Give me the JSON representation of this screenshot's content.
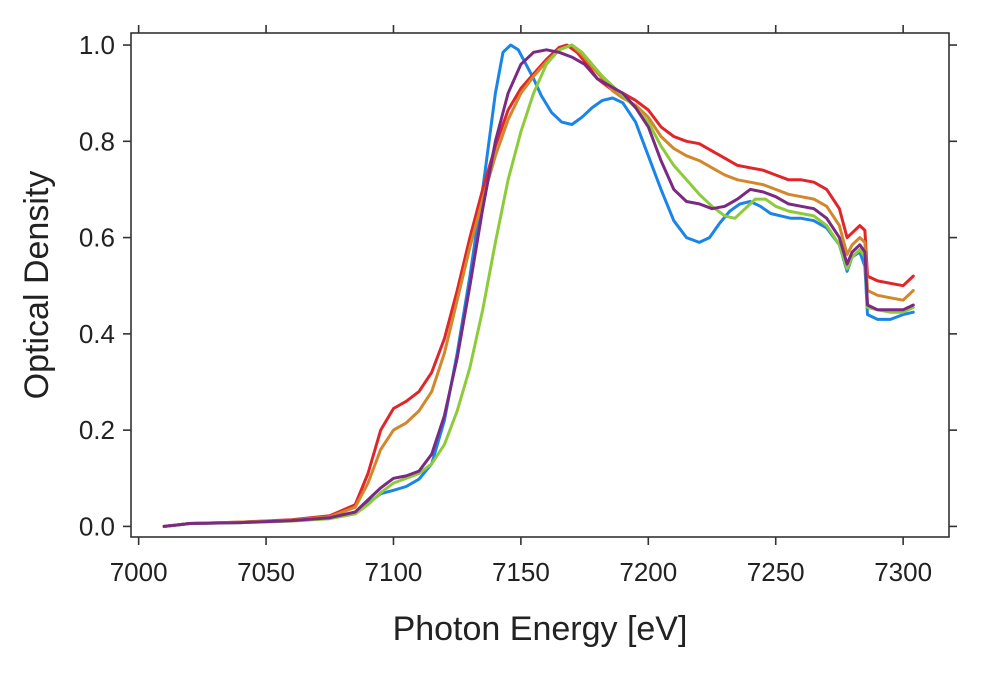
{
  "chart_data": {
    "type": "line",
    "title": "",
    "xlabel": "Photon Energy [eV]",
    "ylabel": "Optical Density",
    "xlim": [
      6997,
      7318
    ],
    "ylim": [
      -0.022,
      1.025
    ],
    "xticks": [
      7000,
      7050,
      7100,
      7150,
      7200,
      7250,
      7300
    ],
    "yticks": [
      0.0,
      0.2,
      0.4,
      0.6,
      0.8,
      1.0
    ],
    "xtick_labels": [
      "7000",
      "7050",
      "7100",
      "7150",
      "7200",
      "7250",
      "7300"
    ],
    "ytick_labels": [
      "0.0",
      "0.2",
      "0.4",
      "0.6",
      "0.8",
      "1.0"
    ],
    "grid": false,
    "legend": "none",
    "series": [
      {
        "name": "blue",
        "color": "#1a85e8",
        "points": [
          [
            7010,
            0.0
          ],
          [
            7015,
            0.003
          ],
          [
            7020,
            0.006
          ],
          [
            7040,
            0.008
          ],
          [
            7060,
            0.012
          ],
          [
            7075,
            0.018
          ],
          [
            7085,
            0.028
          ],
          [
            7090,
            0.048
          ],
          [
            7095,
            0.068
          ],
          [
            7100,
            0.075
          ],
          [
            7105,
            0.083
          ],
          [
            7110,
            0.098
          ],
          [
            7115,
            0.13
          ],
          [
            7120,
            0.22
          ],
          [
            7125,
            0.36
          ],
          [
            7130,
            0.52
          ],
          [
            7135,
            0.7
          ],
          [
            7140,
            0.9
          ],
          [
            7143,
            0.985
          ],
          [
            7146,
            1.0
          ],
          [
            7149,
            0.99
          ],
          [
            7152,
            0.96
          ],
          [
            7155,
            0.93
          ],
          [
            7158,
            0.895
          ],
          [
            7162,
            0.86
          ],
          [
            7166,
            0.84
          ],
          [
            7170,
            0.835
          ],
          [
            7174,
            0.85
          ],
          [
            7178,
            0.87
          ],
          [
            7182,
            0.885
          ],
          [
            7186,
            0.89
          ],
          [
            7190,
            0.88
          ],
          [
            7195,
            0.84
          ],
          [
            7200,
            0.77
          ],
          [
            7205,
            0.7
          ],
          [
            7210,
            0.635
          ],
          [
            7215,
            0.6
          ],
          [
            7220,
            0.59
          ],
          [
            7224,
            0.6
          ],
          [
            7228,
            0.63
          ],
          [
            7232,
            0.655
          ],
          [
            7236,
            0.67
          ],
          [
            7240,
            0.675
          ],
          [
            7244,
            0.665
          ],
          [
            7248,
            0.65
          ],
          [
            7252,
            0.645
          ],
          [
            7256,
            0.64
          ],
          [
            7260,
            0.64
          ],
          [
            7265,
            0.635
          ],
          [
            7270,
            0.62
          ],
          [
            7275,
            0.585
          ],
          [
            7278,
            0.53
          ],
          [
            7280,
            0.56
          ],
          [
            7283,
            0.57
          ],
          [
            7285,
            0.54
          ],
          [
            7286,
            0.44
          ],
          [
            7290,
            0.43
          ],
          [
            7295,
            0.43
          ],
          [
            7300,
            0.44
          ],
          [
            7304,
            0.445
          ]
        ]
      },
      {
        "name": "red",
        "color": "#e0262b",
        "points": [
          [
            7010,
            0.0
          ],
          [
            7015,
            0.003
          ],
          [
            7020,
            0.006
          ],
          [
            7040,
            0.009
          ],
          [
            7060,
            0.014
          ],
          [
            7075,
            0.022
          ],
          [
            7085,
            0.045
          ],
          [
            7090,
            0.11
          ],
          [
            7095,
            0.2
          ],
          [
            7100,
            0.245
          ],
          [
            7105,
            0.26
          ],
          [
            7110,
            0.28
          ],
          [
            7115,
            0.32
          ],
          [
            7120,
            0.39
          ],
          [
            7125,
            0.49
          ],
          [
            7130,
            0.6
          ],
          [
            7135,
            0.7
          ],
          [
            7140,
            0.79
          ],
          [
            7145,
            0.865
          ],
          [
            7150,
            0.91
          ],
          [
            7155,
            0.94
          ],
          [
            7160,
            0.97
          ],
          [
            7165,
            0.995
          ],
          [
            7168,
            1.0
          ],
          [
            7172,
            0.985
          ],
          [
            7176,
            0.96
          ],
          [
            7180,
            0.93
          ],
          [
            7185,
            0.91
          ],
          [
            7190,
            0.9
          ],
          [
            7195,
            0.885
          ],
          [
            7200,
            0.865
          ],
          [
            7205,
            0.83
          ],
          [
            7210,
            0.81
          ],
          [
            7215,
            0.8
          ],
          [
            7220,
            0.795
          ],
          [
            7225,
            0.78
          ],
          [
            7230,
            0.765
          ],
          [
            7235,
            0.75
          ],
          [
            7240,
            0.745
          ],
          [
            7245,
            0.74
          ],
          [
            7250,
            0.73
          ],
          [
            7255,
            0.72
          ],
          [
            7260,
            0.72
          ],
          [
            7265,
            0.715
          ],
          [
            7270,
            0.7
          ],
          [
            7275,
            0.66
          ],
          [
            7278,
            0.6
          ],
          [
            7280,
            0.61
          ],
          [
            7283,
            0.625
          ],
          [
            7285,
            0.615
          ],
          [
            7286,
            0.52
          ],
          [
            7290,
            0.51
          ],
          [
            7295,
            0.505
          ],
          [
            7300,
            0.5
          ],
          [
            7304,
            0.52
          ]
        ]
      },
      {
        "name": "orange",
        "color": "#d4862a",
        "points": [
          [
            7010,
            0.0
          ],
          [
            7015,
            0.003
          ],
          [
            7020,
            0.006
          ],
          [
            7040,
            0.009
          ],
          [
            7060,
            0.013
          ],
          [
            7075,
            0.02
          ],
          [
            7085,
            0.04
          ],
          [
            7090,
            0.09
          ],
          [
            7095,
            0.16
          ],
          [
            7100,
            0.2
          ],
          [
            7105,
            0.215
          ],
          [
            7110,
            0.24
          ],
          [
            7115,
            0.28
          ],
          [
            7120,
            0.36
          ],
          [
            7125,
            0.47
          ],
          [
            7130,
            0.58
          ],
          [
            7135,
            0.68
          ],
          [
            7140,
            0.77
          ],
          [
            7145,
            0.845
          ],
          [
            7150,
            0.9
          ],
          [
            7155,
            0.935
          ],
          [
            7160,
            0.965
          ],
          [
            7165,
            0.99
          ],
          [
            7170,
            1.0
          ],
          [
            7174,
            0.98
          ],
          [
            7178,
            0.955
          ],
          [
            7182,
            0.93
          ],
          [
            7186,
            0.905
          ],
          [
            7190,
            0.89
          ],
          [
            7195,
            0.875
          ],
          [
            7200,
            0.85
          ],
          [
            7205,
            0.81
          ],
          [
            7210,
            0.785
          ],
          [
            7215,
            0.77
          ],
          [
            7220,
            0.76
          ],
          [
            7225,
            0.745
          ],
          [
            7230,
            0.73
          ],
          [
            7235,
            0.72
          ],
          [
            7240,
            0.715
          ],
          [
            7245,
            0.71
          ],
          [
            7250,
            0.7
          ],
          [
            7255,
            0.69
          ],
          [
            7260,
            0.685
          ],
          [
            7265,
            0.68
          ],
          [
            7270,
            0.665
          ],
          [
            7275,
            0.625
          ],
          [
            7278,
            0.565
          ],
          [
            7280,
            0.585
          ],
          [
            7283,
            0.6
          ],
          [
            7285,
            0.59
          ],
          [
            7286,
            0.49
          ],
          [
            7290,
            0.48
          ],
          [
            7295,
            0.475
          ],
          [
            7300,
            0.47
          ],
          [
            7304,
            0.49
          ]
        ]
      },
      {
        "name": "green",
        "color": "#8ecb3a",
        "points": [
          [
            7010,
            0.0
          ],
          [
            7015,
            0.003
          ],
          [
            7020,
            0.006
          ],
          [
            7040,
            0.008
          ],
          [
            7060,
            0.011
          ],
          [
            7075,
            0.016
          ],
          [
            7085,
            0.026
          ],
          [
            7090,
            0.045
          ],
          [
            7095,
            0.07
          ],
          [
            7100,
            0.09
          ],
          [
            7105,
            0.1
          ],
          [
            7110,
            0.11
          ],
          [
            7115,
            0.13
          ],
          [
            7120,
            0.17
          ],
          [
            7125,
            0.24
          ],
          [
            7130,
            0.33
          ],
          [
            7135,
            0.45
          ],
          [
            7140,
            0.59
          ],
          [
            7145,
            0.72
          ],
          [
            7150,
            0.82
          ],
          [
            7155,
            0.9
          ],
          [
            7160,
            0.96
          ],
          [
            7165,
            0.99
          ],
          [
            7170,
            1.0
          ],
          [
            7174,
            0.985
          ],
          [
            7178,
            0.96
          ],
          [
            7182,
            0.935
          ],
          [
            7186,
            0.915
          ],
          [
            7190,
            0.895
          ],
          [
            7195,
            0.87
          ],
          [
            7200,
            0.84
          ],
          [
            7205,
            0.79
          ],
          [
            7210,
            0.75
          ],
          [
            7215,
            0.72
          ],
          [
            7220,
            0.69
          ],
          [
            7225,
            0.665
          ],
          [
            7230,
            0.645
          ],
          [
            7234,
            0.64
          ],
          [
            7238,
            0.66
          ],
          [
            7242,
            0.68
          ],
          [
            7246,
            0.68
          ],
          [
            7250,
            0.665
          ],
          [
            7255,
            0.655
          ],
          [
            7260,
            0.65
          ],
          [
            7265,
            0.645
          ],
          [
            7270,
            0.625
          ],
          [
            7275,
            0.585
          ],
          [
            7278,
            0.535
          ],
          [
            7280,
            0.56
          ],
          [
            7283,
            0.575
          ],
          [
            7285,
            0.56
          ],
          [
            7286,
            0.455
          ],
          [
            7290,
            0.45
          ],
          [
            7295,
            0.445
          ],
          [
            7300,
            0.445
          ],
          [
            7304,
            0.455
          ]
        ]
      },
      {
        "name": "purple",
        "color": "#7b2a84",
        "points": [
          [
            7010,
            0.0
          ],
          [
            7015,
            0.003
          ],
          [
            7020,
            0.006
          ],
          [
            7040,
            0.008
          ],
          [
            7060,
            0.012
          ],
          [
            7075,
            0.018
          ],
          [
            7085,
            0.03
          ],
          [
            7090,
            0.055
          ],
          [
            7095,
            0.08
          ],
          [
            7100,
            0.1
          ],
          [
            7105,
            0.105
          ],
          [
            7110,
            0.115
          ],
          [
            7115,
            0.15
          ],
          [
            7120,
            0.23
          ],
          [
            7125,
            0.35
          ],
          [
            7130,
            0.5
          ],
          [
            7135,
            0.66
          ],
          [
            7140,
            0.8
          ],
          [
            7145,
            0.9
          ],
          [
            7150,
            0.96
          ],
          [
            7155,
            0.985
          ],
          [
            7160,
            0.99
          ],
          [
            7165,
            0.985
          ],
          [
            7170,
            0.975
          ],
          [
            7175,
            0.96
          ],
          [
            7180,
            0.93
          ],
          [
            7185,
            0.915
          ],
          [
            7190,
            0.9
          ],
          [
            7195,
            0.87
          ],
          [
            7200,
            0.83
          ],
          [
            7205,
            0.76
          ],
          [
            7210,
            0.7
          ],
          [
            7215,
            0.675
          ],
          [
            7220,
            0.67
          ],
          [
            7225,
            0.66
          ],
          [
            7230,
            0.665
          ],
          [
            7235,
            0.68
          ],
          [
            7240,
            0.7
          ],
          [
            7245,
            0.695
          ],
          [
            7250,
            0.685
          ],
          [
            7255,
            0.67
          ],
          [
            7260,
            0.665
          ],
          [
            7265,
            0.66
          ],
          [
            7270,
            0.64
          ],
          [
            7275,
            0.6
          ],
          [
            7278,
            0.545
          ],
          [
            7280,
            0.57
          ],
          [
            7283,
            0.585
          ],
          [
            7285,
            0.57
          ],
          [
            7286,
            0.46
          ],
          [
            7290,
            0.45
          ],
          [
            7295,
            0.45
          ],
          [
            7300,
            0.45
          ],
          [
            7304,
            0.46
          ]
        ]
      }
    ]
  }
}
